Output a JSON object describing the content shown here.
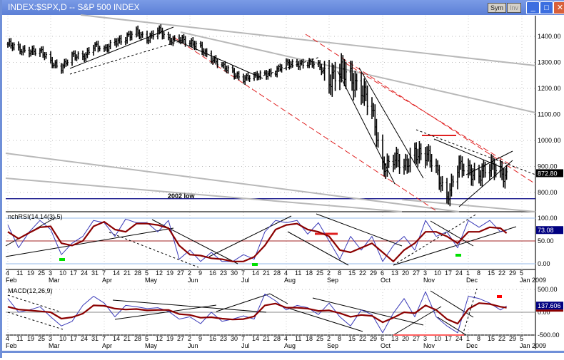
{
  "window": {
    "title": "INDEX:$SPX,D -- S&P 500 INDEX",
    "buttons": {
      "sym": "Sym",
      "inv": "Inv",
      "minimize": "_",
      "maximize": "□",
      "close": "✕"
    }
  },
  "colors": {
    "titlebar": "#5c7fd6",
    "price_bars": "#000000",
    "fast_line": "#3a3ab8",
    "slow_line": "#8b0000",
    "trend_red": "#e02020",
    "trend_gray": "#b8b8b8",
    "low_line": "#000080",
    "marker_green": "#00e000",
    "value_box_dark": "#000080"
  },
  "chart_data": [
    {
      "type": "ohlc",
      "title": "INDEX:$SPX,D -- S&P 500 INDEX",
      "ylim": [
        726,
        1500
      ],
      "yticks": [
        "1400.00",
        "1300.00",
        "1200.00",
        "1100.00",
        "1000.00",
        "900.00",
        "800.00"
      ],
      "ytick_values": [
        1400,
        1300,
        1200,
        1100,
        1000,
        900,
        800
      ],
      "last_value": "872.80",
      "grid": true,
      "dates": [
        "2008-02-04",
        "2008-02-11",
        "2008-02-18",
        "2008-02-25",
        "2008-03-03",
        "2008-03-10",
        "2008-03-17",
        "2008-03-24",
        "2008-03-31",
        "2008-04-07",
        "2008-04-14",
        "2008-04-21",
        "2008-04-28",
        "2008-05-05",
        "2008-05-12",
        "2008-05-19",
        "2008-05-26",
        "2008-06-02",
        "2008-06-09",
        "2008-06-16",
        "2008-06-23",
        "2008-06-30",
        "2008-07-07",
        "2008-07-14",
        "2008-07-21",
        "2008-07-28",
        "2008-08-04",
        "2008-08-11",
        "2008-08-18",
        "2008-08-25",
        "2008-09-01",
        "2008-09-08",
        "2008-09-15",
        "2008-09-22",
        "2008-09-29",
        "2008-10-06",
        "2008-10-13",
        "2008-10-20",
        "2008-10-27",
        "2008-11-03",
        "2008-11-10",
        "2008-11-17",
        "2008-11-24",
        "2008-12-01",
        "2008-12-08",
        "2008-12-15",
        "2008-12-22",
        "2008-12-26"
      ],
      "closes": [
        1370,
        1345,
        1350,
        1340,
        1300,
        1285,
        1320,
        1320,
        1370,
        1340,
        1385,
        1395,
        1410,
        1395,
        1425,
        1380,
        1400,
        1370,
        1355,
        1320,
        1280,
        1262,
        1240,
        1240,
        1260,
        1265,
        1290,
        1300,
        1295,
        1285,
        1250,
        1255,
        1240,
        1215,
        1100,
        900,
        940,
        880,
        965,
        950,
        875,
        790,
        895,
        875,
        880,
        890,
        875,
        872.8
      ],
      "annotations": [
        {
          "label": "2002 low",
          "price": 776
        }
      ]
    },
    {
      "type": "line",
      "title": "nchRSI(14,14(3),5)",
      "ylim": [
        0,
        100
      ],
      "yticks": [
        "100.00",
        "50.00",
        "0.00"
      ],
      "ytick_values": [
        100,
        50,
        0
      ],
      "last_value": "73.08",
      "series": [
        {
          "values": [
            85,
            35,
            70,
            95,
            75,
            20,
            45,
            60,
            95,
            90,
            60,
            98,
            90,
            90,
            70,
            95,
            10,
            30,
            5,
            25,
            5,
            5,
            20,
            10,
            70,
            95,
            90,
            95,
            65,
            90,
            50,
            10,
            60,
            30,
            60,
            5,
            40,
            60,
            30,
            95,
            60,
            70,
            35,
            95,
            80,
            95,
            70,
            73.08
          ]
        },
        {
          "values": [
            70,
            55,
            68,
            80,
            82,
            45,
            40,
            50,
            82,
            92,
            75,
            70,
            88,
            88,
            85,
            78,
            40,
            20,
            18,
            12,
            10,
            5,
            5,
            15,
            40,
            75,
            85,
            88,
            75,
            70,
            60,
            30,
            25,
            35,
            45,
            25,
            5,
            30,
            45,
            70,
            70,
            60,
            45,
            70,
            70,
            80,
            78,
            67
          ]
        }
      ]
    },
    {
      "type": "line",
      "title": "MACD(12,26,9)",
      "ylim": [
        -500,
        500
      ],
      "yticks": [
        "500.00",
        "0.00",
        "-500.00"
      ],
      "ytick_values": [
        500,
        0,
        -500
      ],
      "last_value": "137.606",
      "series": [
        {
          "values": [
            300,
            0,
            50,
            120,
            -100,
            -300,
            -200,
            150,
            350,
            200,
            -100,
            150,
            120,
            80,
            100,
            20,
            -150,
            -100,
            -250,
            0,
            -200,
            -150,
            -80,
            -150,
            400,
            250,
            50,
            150,
            100,
            -50,
            200,
            -100,
            -300,
            50,
            -50,
            -450,
            -20,
            300,
            -100,
            450,
            -100,
            -300,
            -450,
            350,
            300,
            200,
            50,
            137.606
          ]
        },
        {
          "values": [
            120,
            60,
            40,
            20,
            0,
            -140,
            -110,
            -30,
            150,
            140,
            80,
            60,
            70,
            40,
            50,
            50,
            -40,
            -60,
            -120,
            -110,
            -140,
            -160,
            -150,
            -90,
            150,
            190,
            100,
            100,
            80,
            30,
            40,
            -20,
            -100,
            -60,
            -80,
            -220,
            -120,
            0,
            -20,
            150,
            50,
            -150,
            -250,
            70,
            200,
            180,
            120,
            100
          ]
        }
      ]
    }
  ],
  "x_axis": {
    "ticks": [
      "4",
      "11",
      "19",
      "25",
      "3",
      "10",
      "17",
      "24",
      "31",
      "7",
      "14",
      "21",
      "28",
      "5",
      "12",
      "19",
      "27",
      "2",
      "9",
      "16",
      "23",
      "30",
      "7",
      "14",
      "21",
      "28",
      "4",
      "11",
      "18",
      "25",
      "2",
      "8",
      "15",
      "22",
      "29",
      "6",
      "13",
      "20",
      "27",
      "3",
      "10",
      "17",
      "24",
      "1",
      "8",
      "15",
      "22",
      "29",
      "5"
    ],
    "months": [
      {
        "label": "Feb",
        "tick": 0
      },
      {
        "label": "Mar",
        "tick": 4
      },
      {
        "label": "Apr",
        "tick": 9
      },
      {
        "label": "May",
        "tick": 13
      },
      {
        "label": "Jun",
        "tick": 17
      },
      {
        "label": "Jul",
        "tick": 22
      },
      {
        "label": "Aug",
        "tick": 26
      },
      {
        "label": "Sep",
        "tick": 30
      },
      {
        "label": "Oct",
        "tick": 35
      },
      {
        "label": "Nov",
        "tick": 39
      },
      {
        "label": "Dec",
        "tick": 43
      },
      {
        "label": "Jan 2009",
        "tick": 48
      }
    ]
  }
}
